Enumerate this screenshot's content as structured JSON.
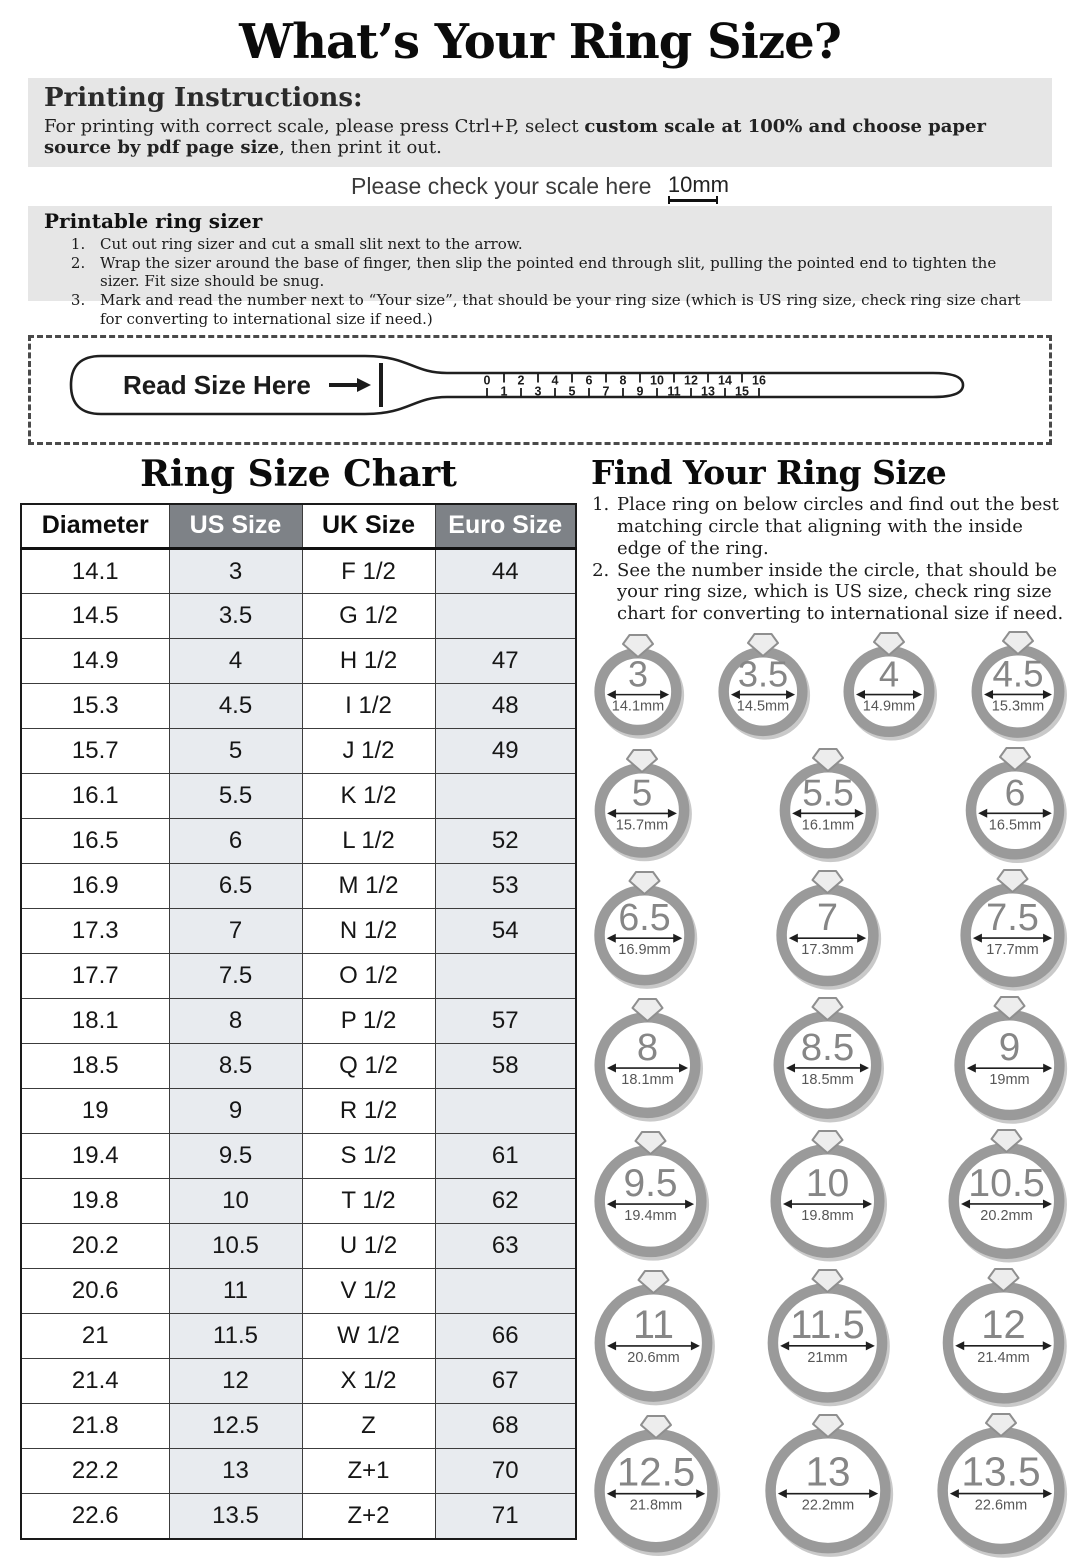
{
  "page": {
    "title": "What’s Your Ring Size?"
  },
  "printing": {
    "heading": "Printing Instructions:",
    "body_prefix": "For printing with correct scale, please press Ctrl+P, select ",
    "body_bold": "custom scale at 100% and choose paper source by pdf page size",
    "body_suffix": ", then print it out."
  },
  "scale_check": {
    "label": "Please check your scale here",
    "value": "10mm"
  },
  "sizer": {
    "heading": "Printable ring sizer",
    "steps": [
      "Cut out ring sizer and cut a small slit next to the arrow.",
      "Wrap the sizer around the base of finger, then slip the pointed end through slit, pulling the pointed end to tighten the sizer. Fit size should be snug.",
      "Mark and read the number next to “Your size”, that should be your ring size (which is US ring size, check ring size chart for converting to international size if need.)"
    ],
    "read_label": "Read Size Here",
    "ruler_numbers": [
      0,
      1,
      2,
      3,
      4,
      5,
      6,
      7,
      8,
      9,
      10,
      11,
      12,
      13,
      14,
      15,
      16
    ]
  },
  "chart": {
    "title": "Ring Size Chart",
    "headers": [
      "Diameter",
      "US Size",
      "UK Size",
      "Euro Size"
    ],
    "rows": [
      [
        "14.1",
        "3",
        "F 1/2",
        "44"
      ],
      [
        "14.5",
        "3.5",
        "G 1/2",
        ""
      ],
      [
        "14.9",
        "4",
        "H 1/2",
        "47"
      ],
      [
        "15.3",
        "4.5",
        "I 1/2",
        "48"
      ],
      [
        "15.7",
        "5",
        "J 1/2",
        "49"
      ],
      [
        "16.1",
        "5.5",
        "K 1/2",
        ""
      ],
      [
        "16.5",
        "6",
        "L 1/2",
        "52"
      ],
      [
        "16.9",
        "6.5",
        "M 1/2",
        "53"
      ],
      [
        "17.3",
        "7",
        "N 1/2",
        "54"
      ],
      [
        "17.7",
        "7.5",
        "O 1/2",
        ""
      ],
      [
        "18.1",
        "8",
        "P 1/2",
        "57"
      ],
      [
        "18.5",
        "8.5",
        "Q 1/2",
        "58"
      ],
      [
        "19",
        "9",
        "R 1/2",
        ""
      ],
      [
        "19.4",
        "9.5",
        "S 1/2",
        "61"
      ],
      [
        "19.8",
        "10",
        "T 1/2",
        "62"
      ],
      [
        "20.2",
        "10.5",
        "U 1/2",
        "63"
      ],
      [
        "20.6",
        "11",
        "V 1/2",
        ""
      ],
      [
        "21",
        "11.5",
        "W 1/2",
        "66"
      ],
      [
        "21.4",
        "12",
        "X 1/2",
        "67"
      ],
      [
        "21.8",
        "12.5",
        "Z",
        "68"
      ],
      [
        "22.2",
        "13",
        "Z+1",
        "70"
      ],
      [
        "22.6",
        "13.5",
        "Z+2",
        "71"
      ]
    ]
  },
  "finder": {
    "title": "Find Your Ring Size",
    "steps": [
      "Place ring on below circles and find out the best matching circle that aligning with the inside edge of the ring.",
      "See the number inside the circle, that should be your ring size, which is US size, check ring size chart for converting to international size if need."
    ],
    "ring_rows": [
      [
        {
          "size": "3",
          "mm": 14.1,
          "label": "14.1mm"
        },
        {
          "size": "3.5",
          "mm": 14.5,
          "label": "14.5mm"
        },
        {
          "size": "4",
          "mm": 14.9,
          "label": "14.9mm"
        },
        {
          "size": "4.5",
          "mm": 15.3,
          "label": "15.3mm"
        }
      ],
      [
        {
          "size": "5",
          "mm": 15.7,
          "label": "15.7mm"
        },
        {
          "size": "5.5",
          "mm": 16.1,
          "label": "16.1mm"
        },
        {
          "size": "6",
          "mm": 16.5,
          "label": "16.5mm"
        }
      ],
      [
        {
          "size": "6.5",
          "mm": 16.9,
          "label": "16.9mm"
        },
        {
          "size": "7",
          "mm": 17.3,
          "label": "17.3mm"
        },
        {
          "size": "7.5",
          "mm": 17.7,
          "label": "17.7mm"
        }
      ],
      [
        {
          "size": "8",
          "mm": 18.1,
          "label": "18.1mm"
        },
        {
          "size": "8.5",
          "mm": 18.5,
          "label": "18.5mm"
        },
        {
          "size": "9",
          "mm": 19,
          "label": "19mm"
        }
      ],
      [
        {
          "size": "9.5",
          "mm": 19.4,
          "label": "19.4mm"
        },
        {
          "size": "10",
          "mm": 19.8,
          "label": "19.8mm"
        },
        {
          "size": "10.5",
          "mm": 20.2,
          "label": "20.2mm"
        }
      ],
      [
        {
          "size": "11",
          "mm": 20.6,
          "label": "20.6mm"
        },
        {
          "size": "11.5",
          "mm": 21,
          "label": "21mm"
        },
        {
          "size": "12",
          "mm": 21.4,
          "label": "21.4mm"
        }
      ],
      [
        {
          "size": "12.5",
          "mm": 21.8,
          "label": "21.8mm"
        },
        {
          "size": "13",
          "mm": 22.2,
          "label": "22.2mm"
        },
        {
          "size": "13.5",
          "mm": 22.6,
          "label": "22.6mm"
        }
      ]
    ]
  },
  "colors": {
    "band_gray": "#e6e6e6",
    "header_cell_gray": "#7e8287",
    "striped_cell": "#e8ebef",
    "ring_gray": "#9a9a9a",
    "ring_shadow": "#c9c9c9",
    "ring_text": "#868686"
  }
}
